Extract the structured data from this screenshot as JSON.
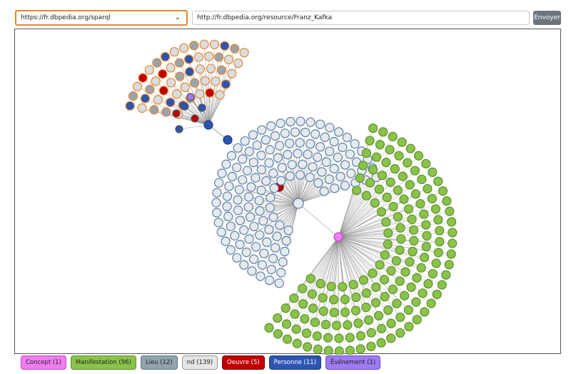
{
  "toolbar": {
    "endpoint_value": "https://fr.dbpedia.org/sparql",
    "resource_value": "http://fr.dbpedia.org/resource/Franz_Kafka",
    "send_label": "Envoyer"
  },
  "legend": [
    {
      "key": "concept",
      "label": "Concept (1)",
      "fill": "#f07ef0",
      "border": "#c04ac0",
      "text": "#222222"
    },
    {
      "key": "manifestation",
      "label": "Manifestation (96)",
      "fill": "#8bc34a",
      "border": "#5e8f2c",
      "text": "#222222"
    },
    {
      "key": "lieu",
      "label": "Lieu (12)",
      "fill": "#90a4ae",
      "border": "#5f7480",
      "text": "#222222"
    },
    {
      "key": "nd",
      "label": "nd (139)",
      "fill": "#e5e5e5",
      "border": "#9a9a9a",
      "text": "#222222"
    },
    {
      "key": "oeuvre",
      "label": "Oeuvre (5)",
      "fill": "#c00000",
      "border": "#7a0000",
      "text": "#ffffff"
    },
    {
      "key": "personne",
      "label": "Personne (11)",
      "fill": "#2d55b0",
      "border": "#1c3a80",
      "text": "#ffffff"
    },
    {
      "key": "evenement",
      "label": "Événement (1)",
      "fill": "#9c7cf0",
      "border": "#6a4ad0",
      "text": "#222222"
    }
  ],
  "colors": {
    "link": "#888888",
    "nd_fill": "#e6eaee",
    "nd_stroke": "#5b7fa6",
    "orange_stroke": "#e8862a",
    "lieu_fill": "#9aa3ac",
    "green_fill": "#8bc34a",
    "green_stroke": "#5e8f2c"
  }
}
